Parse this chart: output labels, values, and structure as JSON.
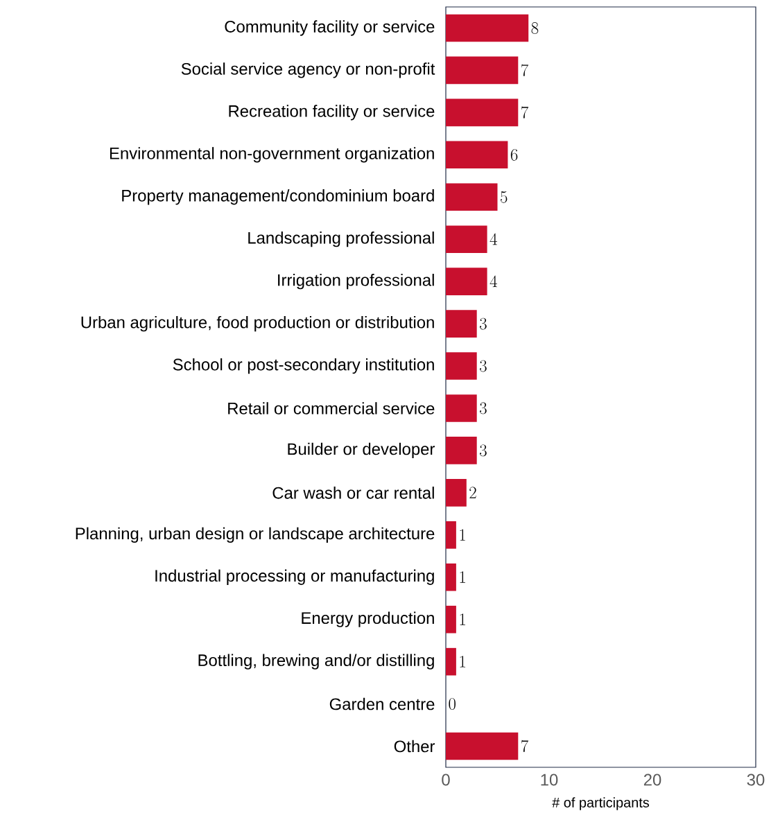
{
  "chart_data": {
    "type": "bar",
    "orientation": "horizontal",
    "xlabel": "# of participants",
    "categories": [
      "Community facility or service",
      "Social service agency or non-profit",
      "Recreation facility or service",
      "Environmental non-government organization",
      "Property management/condominium board",
      "Landscaping professional",
      "Irrigation professional",
      "Urban agriculture, food production or distribution",
      "School or post-secondary institution",
      "Retail or commercial service",
      "Builder or developer",
      "Car wash or car rental",
      "Planning, urban design or landscape architecture",
      "Industrial processing or manufacturing",
      "Energy production",
      "Bottling, brewing and/or distilling",
      "Garden centre",
      "Other"
    ],
    "values": [
      8,
      7,
      7,
      6,
      5,
      4,
      4,
      3,
      3,
      3,
      3,
      2,
      1,
      1,
      1,
      1,
      0,
      7
    ],
    "color": "#c8102e",
    "xlim": [
      0,
      30
    ],
    "xticks": [
      0,
      10,
      20,
      30
    ],
    "data_labels": true
  }
}
